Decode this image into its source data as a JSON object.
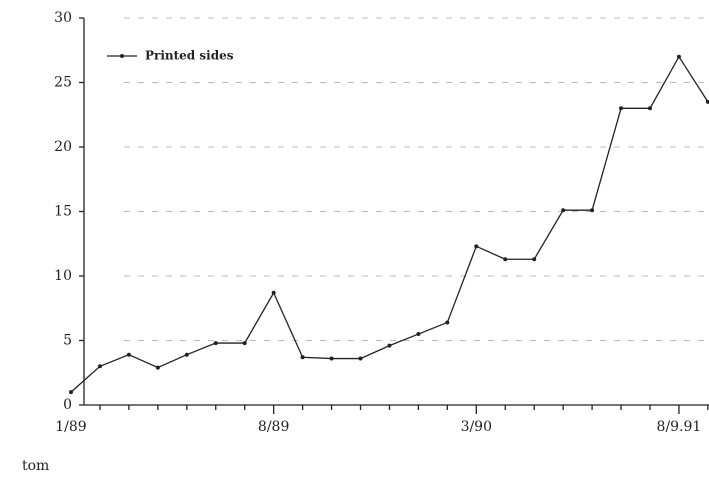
{
  "chart_data": {
    "type": "line",
    "categories": [
      "1/89",
      null,
      null,
      null,
      null,
      null,
      null,
      "8/89",
      null,
      null,
      null,
      null,
      null,
      null,
      "3/90",
      null,
      null,
      null,
      null,
      null,
      null,
      "8/9.91",
      null
    ],
    "series": [
      {
        "name": "Printed sides",
        "color": "#222222",
        "values": [
          1.0,
          3.0,
          3.9,
          2.9,
          3.9,
          4.8,
          4.8,
          8.7,
          3.7,
          3.6,
          3.6,
          4.6,
          5.5,
          6.4,
          12.3,
          11.3,
          11.3,
          15.1,
          15.1,
          23.0,
          23.0,
          27.0,
          23.5
        ]
      }
    ],
    "ylim": [
      0,
      30
    ],
    "yticks": [
      0,
      5,
      10,
      15,
      20,
      25,
      30
    ],
    "grid": true,
    "legend": "top-left",
    "annotation": "tom"
  }
}
